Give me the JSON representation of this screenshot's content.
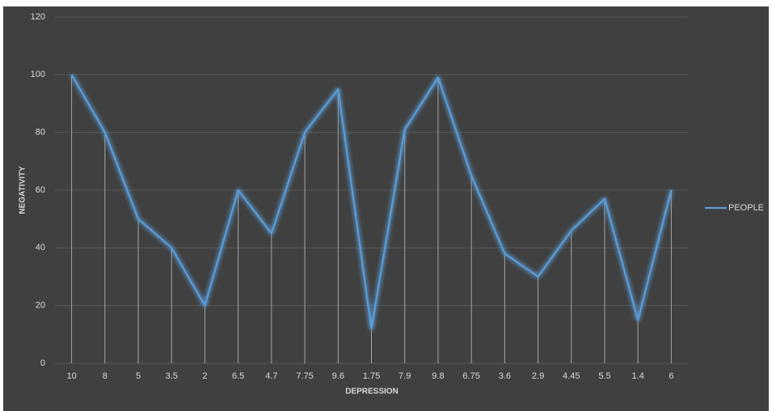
{
  "chart_data": {
    "type": "line",
    "x_label": "DEPRESSION",
    "y_label": "NEGATIVITY",
    "categories": [
      "10",
      "8",
      "5",
      "3.5",
      "2",
      "6.5",
      "4.7",
      "7.75",
      "9.6",
      "1.75",
      "7.9",
      "9.8",
      "6.75",
      "3.6",
      "2.9",
      "4.45",
      "5.5",
      "1.4",
      "6"
    ],
    "series": [
      {
        "name": "PEOPLE",
        "color": "#5b9bd5",
        "values": [
          100,
          80,
          50,
          40,
          20,
          60,
          45,
          80,
          95,
          12,
          81,
          99,
          65,
          38,
          30,
          46,
          57,
          15,
          60
        ]
      }
    ],
    "ylim": [
      0,
      120
    ],
    "yticks": [
      0,
      20,
      40,
      60,
      80,
      100,
      120
    ],
    "grid": true,
    "drop_lines": true,
    "legend": "right"
  }
}
